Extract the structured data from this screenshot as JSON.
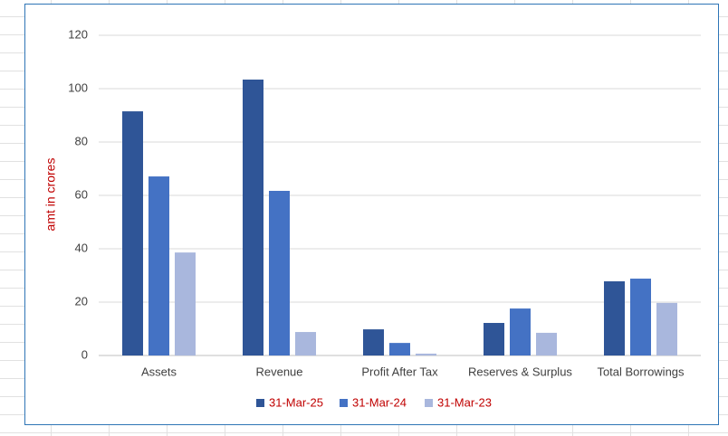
{
  "chart_data": {
    "type": "bar",
    "y_label": "amt in crores",
    "categories": [
      "Assets",
      "Revenue",
      "Profit After Tax",
      "Reserves & Surplus",
      "Total Borrowings"
    ],
    "series": [
      {
        "name": "31-Mar-25",
        "color": "#2f5597",
        "values": [
          91.5,
          103.4,
          9.8,
          12.2,
          27.8
        ]
      },
      {
        "name": "31-Mar-24",
        "color": "#4472c4",
        "values": [
          67.1,
          61.7,
          4.7,
          17.6,
          28.8
        ]
      },
      {
        "name": "31-Mar-23",
        "color": "#a9b7dd",
        "values": [
          38.6,
          8.8,
          0.7,
          8.5,
          19.7
        ]
      }
    ],
    "ylim": [
      0,
      120
    ],
    "yticks": [
      0,
      20,
      40,
      60,
      80,
      100,
      120
    ],
    "grid": true,
    "legend": "bottom"
  }
}
